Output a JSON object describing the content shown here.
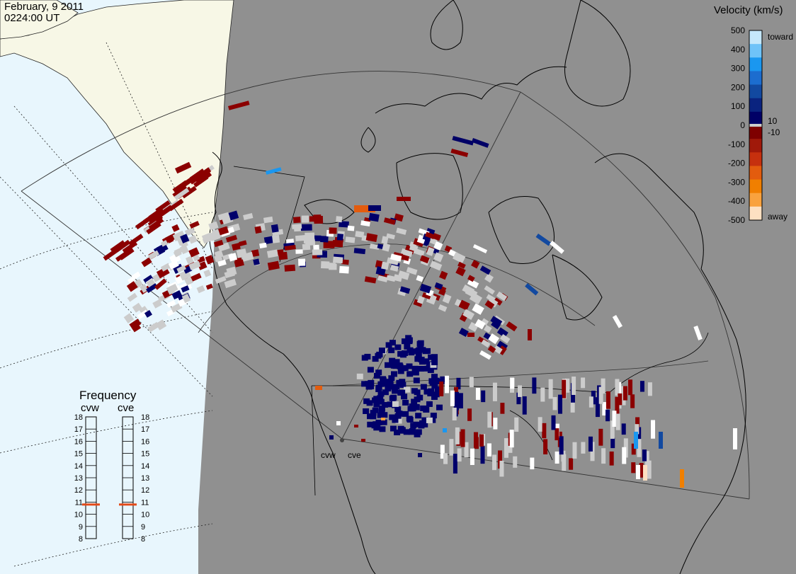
{
  "header": {
    "date": "February, 9 2011",
    "time": "0224:00 UT"
  },
  "colorbar": {
    "title": "Velocity (km/s)",
    "ticks": [
      "500",
      "400",
      "300",
      "200",
      "100",
      "0",
      "-100",
      "-200",
      "-300",
      "-400",
      "-500"
    ],
    "inner_labels": [
      "10",
      "-10"
    ],
    "toward_label": "toward",
    "away_label": "away",
    "colors": [
      "#fde0c2",
      "#f9a23e",
      "#f07f00",
      "#e35c0e",
      "#c6300e",
      "#a0190a",
      "#7e0000",
      "#000066",
      "#0a237f",
      "#1249a0",
      "#1c6dcf",
      "#1a97f0",
      "#6fc3f8",
      "#c5e8fb"
    ]
  },
  "frequency": {
    "title": "Frequency",
    "radars": [
      "cvw",
      "cve"
    ],
    "ticks": [
      "18",
      "17",
      "16",
      "15",
      "14",
      "13",
      "12",
      "11",
      "10",
      "9",
      "8"
    ],
    "cvw_mhz": 10.8,
    "cve_mhz": 10.8,
    "marker_color": "#e34a18"
  },
  "map": {
    "radar_labels": [
      "cvw",
      "cve"
    ],
    "night_color": "#909090",
    "land_day_color": "#f7f7e6",
    "ocean_day_color": "#e8f6fd"
  },
  "velocity_colors": {
    "gray_scatter": "#cccccc",
    "away_dark": "#8b0000",
    "toward_dark": "#00006b",
    "white": "#ffffff"
  }
}
